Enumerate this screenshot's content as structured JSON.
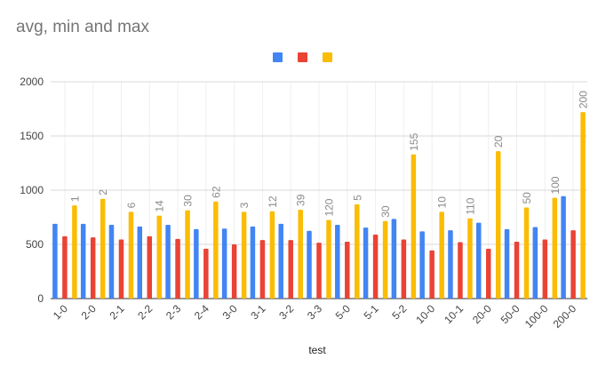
{
  "chart_data": {
    "type": "bar",
    "title": "avg, min and max",
    "xlabel": "test",
    "ylabel": "",
    "ylim": [
      0,
      2000
    ],
    "yticks": [
      0,
      500,
      1000,
      1500,
      2000
    ],
    "grid": true,
    "legend_position": "top",
    "categories": [
      "1-0",
      "2-0",
      "2-1",
      "2-2",
      "2-3",
      "2-4",
      "3-0",
      "3-1",
      "3-2",
      "3-3",
      "5-0",
      "5-1",
      "5-2",
      "10-0",
      "10-1",
      "20-0",
      "50-0",
      "100-0",
      "200-0"
    ],
    "data_labels": [
      "1",
      "2",
      "6",
      "14",
      "30",
      "62",
      "3",
      "12",
      "39",
      "120",
      "5",
      "30",
      "155",
      "10",
      "110",
      "20",
      "50",
      "100",
      "200"
    ],
    "series": [
      {
        "color": "#4285f4",
        "values": [
          690,
          690,
          680,
          665,
          680,
          640,
          645,
          665,
          690,
          625,
          680,
          655,
          735,
          620,
          630,
          700,
          640,
          660,
          945
        ]
      },
      {
        "color": "#ea4335",
        "values": [
          575,
          565,
          545,
          575,
          550,
          460,
          500,
          540,
          540,
          515,
          525,
          590,
          545,
          445,
          520,
          460,
          525,
          545,
          630
        ]
      },
      {
        "color": "#fbbc04",
        "values": [
          860,
          920,
          800,
          765,
          815,
          895,
          800,
          805,
          820,
          725,
          870,
          715,
          1330,
          800,
          740,
          1360,
          840,
          930,
          1720
        ]
      }
    ]
  }
}
